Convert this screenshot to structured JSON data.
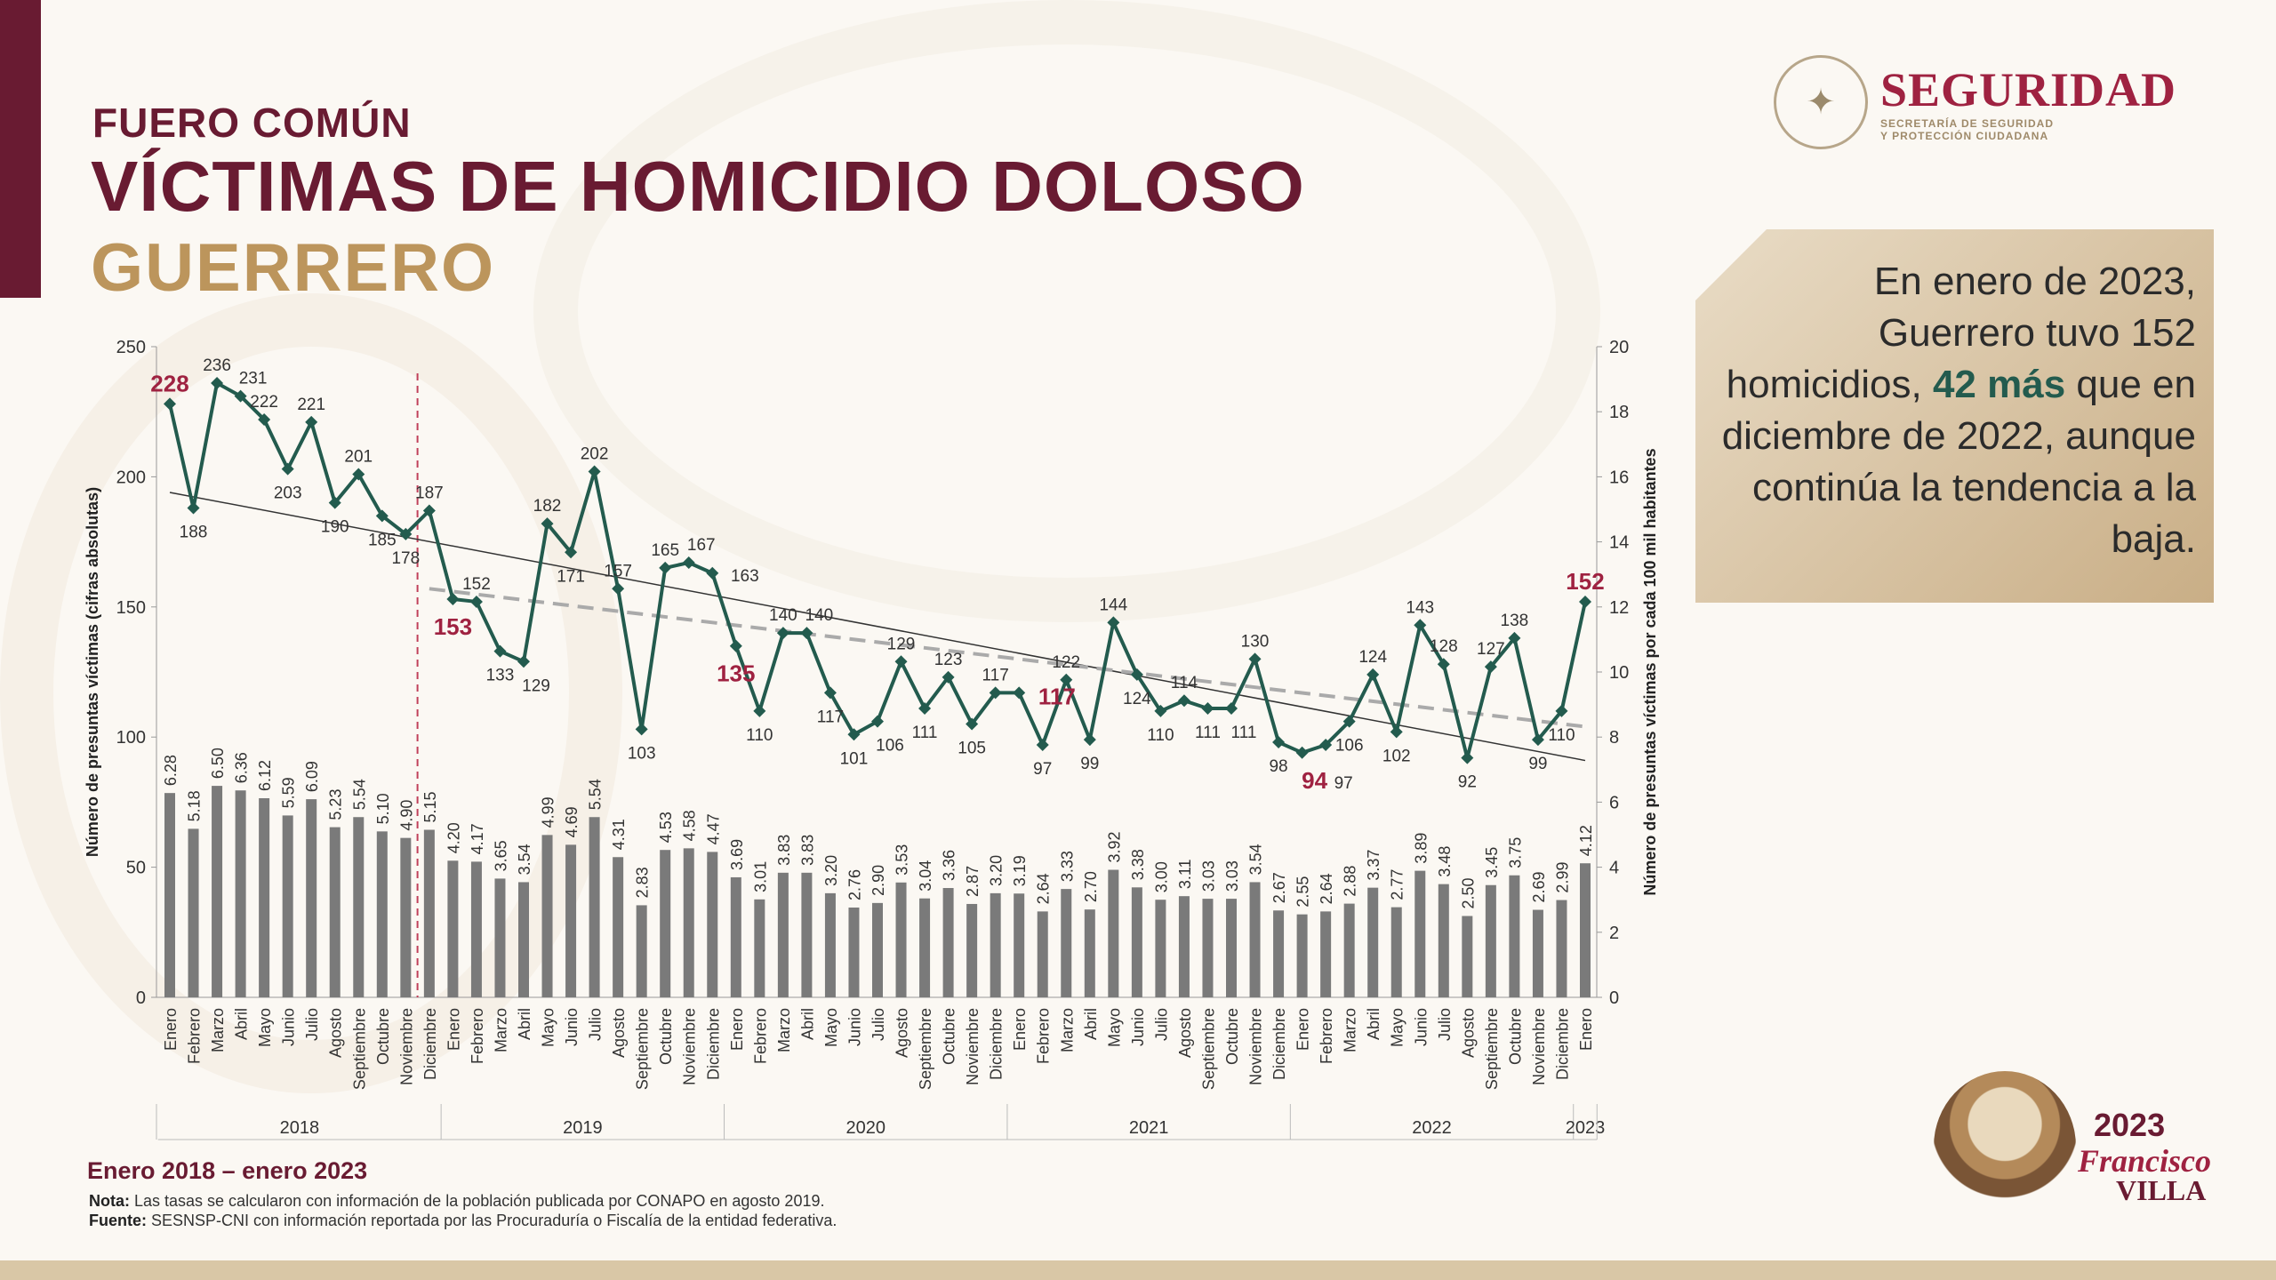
{
  "header": {
    "kicker": "FUERO COMÚN",
    "title": "VÍCTIMAS DE HOMICIDIO DOLOSO",
    "state": "GUERRERO"
  },
  "logo": {
    "name": "SEGURIDAD",
    "subtitle1": "SECRETARÍA DE SEGURIDAD",
    "subtitle2": "Y PROTECCIÓN CIUDADANA"
  },
  "summary": {
    "part1": "En enero de 2023, Guerrero tuvo 152 homicidios, ",
    "highlight": "42 más",
    "part2": " que en diciembre de 2022, aunque continúa la tendencia a la baja."
  },
  "footer": {
    "range": "Enero 2018 – enero 2023",
    "note_label": "Nota:",
    "note_text": " Las tasas se calcularon con información de la población publicada por CONAPO en agosto 2019.",
    "source_label": "Fuente:",
    "source_text": " SESNSP-CNI con información reportada por las Procuraduría o Fiscalía de la entidad federativa."
  },
  "badge": {
    "year": "2023",
    "name1": "Francisco",
    "name2": "VILLA"
  },
  "colors": {
    "maroon": "#691b32",
    "gold": "#bc955c",
    "line": "#235b4e",
    "bar": "#7a7a7a",
    "highlight": "#9f2241"
  },
  "chart_data": {
    "type": "bar+line",
    "ylabel_left": "Número de presuntas víctimas (cifras absolutas)",
    "ylabel_right": "Número de presuntas víctimas por cada 100 mil habitantes",
    "ylim_left": [
      0,
      250
    ],
    "yticks_left": [
      0,
      50,
      100,
      150,
      200,
      250
    ],
    "ylim_right": [
      0,
      20
    ],
    "yticks_right": [
      0,
      2,
      4,
      6,
      8,
      10,
      12,
      14,
      16,
      18,
      20
    ],
    "years": [
      {
        "label": "2018",
        "months": 12
      },
      {
        "label": "2019",
        "months": 12
      },
      {
        "label": "2020",
        "months": 12
      },
      {
        "label": "2021",
        "months": 12
      },
      {
        "label": "2022",
        "months": 12
      },
      {
        "label": "2023",
        "months": 1
      }
    ],
    "categories": [
      "Enero",
      "Febrero",
      "Marzo",
      "Abril",
      "Mayo",
      "Junio",
      "Julio",
      "Agosto",
      "Septiembre",
      "Octubre",
      "Noviembre",
      "Diciembre",
      "Enero",
      "Febrero",
      "Marzo",
      "Abril",
      "Mayo",
      "Junio",
      "Julio",
      "Agosto",
      "Septiembre",
      "Octubre",
      "Noviembre",
      "Diciembre",
      "Enero",
      "Febrero",
      "Marzo",
      "Abril",
      "Mayo",
      "Junio",
      "Julio",
      "Agosto",
      "Septiembre",
      "Octubre",
      "Noviembre",
      "Diciembre",
      "Enero",
      "Febrero",
      "Marzo",
      "Abril",
      "Mayo",
      "Junio",
      "Julio",
      "Agosto",
      "Septiembre",
      "Octubre",
      "Noviembre",
      "Diciembre",
      "Enero",
      "Febrero",
      "Marzo",
      "Abril",
      "Mayo",
      "Junio",
      "Julio",
      "Agosto",
      "Septiembre",
      "Octubre",
      "Noviembre",
      "Diciembre",
      "Enero"
    ],
    "series": [
      {
        "type": "line",
        "axis": "left",
        "values": [
          228,
          188,
          236,
          231,
          222,
          203,
          221,
          190,
          201,
          185,
          178,
          187,
          153,
          152,
          133,
          129,
          182,
          171,
          202,
          157,
          103,
          165,
          167,
          163,
          135,
          110,
          140,
          140,
          117,
          101,
          106,
          129,
          111,
          123,
          105,
          117,
          117,
          97,
          122,
          99,
          144,
          124,
          110,
          114,
          111,
          111,
          130,
          98,
          94,
          97,
          106,
          124,
          102,
          143,
          128,
          92,
          127,
          138,
          99,
          110,
          152
        ]
      },
      {
        "type": "bar",
        "axis": "right",
        "values": [
          "6.28",
          "5.18",
          "6.50",
          "6.36",
          "6.12",
          "5.59",
          "6.09",
          "5.23",
          "5.54",
          "5.10",
          "4.90",
          "5.15",
          "4.20",
          "4.17",
          "3.65",
          "3.54",
          "4.99",
          "4.69",
          "5.54",
          "4.31",
          "2.83",
          "4.53",
          "4.58",
          "4.47",
          "3.69",
          "3.01",
          "3.83",
          "3.83",
          "3.20",
          "2.76",
          "2.90",
          "3.53",
          "3.04",
          "3.36",
          "2.87",
          "3.20",
          "3.19",
          "2.64",
          "3.33",
          "2.70",
          "3.92",
          "3.38",
          "3.00",
          "3.11",
          "3.03",
          "3.03",
          "3.54",
          "2.67",
          "2.55",
          "2.64",
          "2.88",
          "3.37",
          "2.77",
          "3.89",
          "3.48",
          "2.50",
          "3.45",
          "3.75",
          "2.69",
          "2.99",
          "4.12"
        ]
      }
    ],
    "highlighted_indices": [
      0,
      12,
      24,
      36,
      48,
      60
    ],
    "trendlines": [
      {
        "style": "solid",
        "color": "#333333",
        "from_index": 0,
        "to_index": 60,
        "start": 194,
        "end": 91
      },
      {
        "style": "dashed",
        "color": "#aaaaaa",
        "from_index": 11,
        "to_index": 60,
        "start": 157,
        "end": 104
      }
    ],
    "marker_line": {
      "style": "dashed",
      "color": "#c0405a",
      "between_indices": [
        10,
        11
      ]
    },
    "grid": false,
    "legend": "none"
  }
}
